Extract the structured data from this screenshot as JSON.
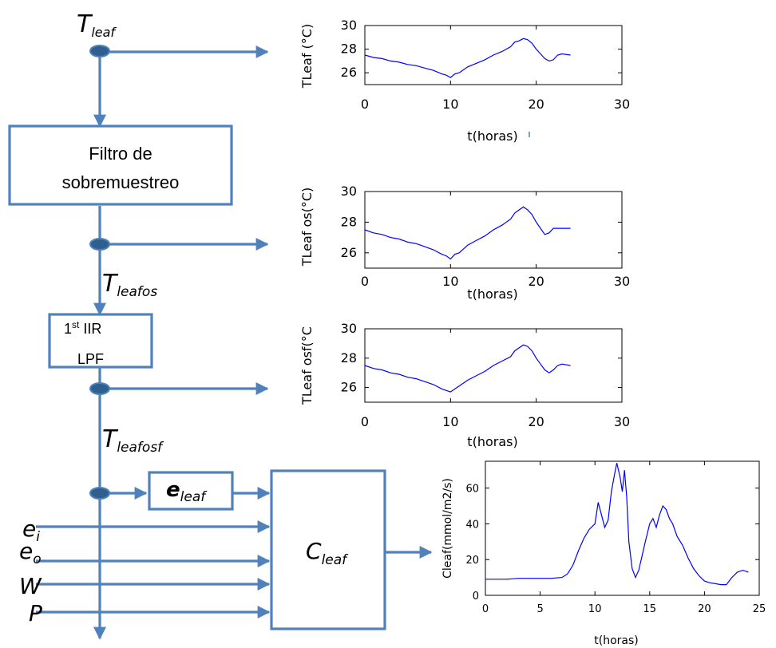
{
  "signals": {
    "tleaf": {
      "main": "T",
      "sub": "leaf"
    },
    "tleafos": {
      "main": "T",
      "sub": "leafos"
    },
    "tleafosf": {
      "main": "T",
      "sub": "leafosf"
    },
    "eleaf": {
      "main": "e",
      "sub": "leaf"
    },
    "cleaf": {
      "main": "C",
      "sub": "leaf"
    },
    "ei": {
      "main": "e",
      "sub": "i"
    },
    "eo": {
      "main": "e",
      "sub": "o"
    },
    "w": "W",
    "p": "P"
  },
  "blocks": {
    "filter_line1": "Filtro de",
    "filter_line2": "sobremuestreo",
    "iir_prefix": "1",
    "iir_sup": "st",
    "iir_line1_rest": " IIR",
    "iir_line2": "LPF"
  },
  "colors": {
    "arrow": "#4f81bd",
    "node_fill": "#2f5f8f",
    "curve": "#0000ff"
  },
  "chart_data": [
    {
      "type": "line",
      "title": "",
      "xlabel": "t(horas)",
      "ylabel": "TLeaf (°C)",
      "xlim": [
        0,
        30
      ],
      "ylim": [
        25,
        30
      ],
      "xticks": [
        "0",
        "10",
        "20",
        "30"
      ],
      "yticks": [
        "26",
        "28",
        "30"
      ],
      "series": [
        {
          "x": [
            0,
            1,
            2,
            3,
            4,
            5,
            6,
            7,
            8,
            9,
            9.5,
            10,
            10.5,
            11,
            12,
            13,
            14,
            15,
            16,
            17,
            17.5,
            18,
            18.5,
            19,
            19.5,
            20,
            20.5,
            21,
            21.5,
            22,
            22.5,
            23,
            24
          ],
          "y": [
            27.5,
            27.3,
            27.2,
            27.0,
            26.9,
            26.7,
            26.6,
            26.4,
            26.2,
            25.9,
            25.8,
            25.6,
            25.9,
            26.0,
            26.5,
            26.8,
            27.1,
            27.5,
            27.8,
            28.2,
            28.6,
            28.7,
            28.9,
            28.8,
            28.5,
            28.0,
            27.6,
            27.2,
            27.0,
            27.1,
            27.5,
            27.6,
            27.5
          ]
        }
      ]
    },
    {
      "type": "line",
      "title": "",
      "xlabel": "t(horas)",
      "ylabel": "TLeaf os(°C)",
      "xlim": [
        0,
        30
      ],
      "ylim": [
        25,
        30
      ],
      "xticks": [
        "0",
        "10",
        "20",
        "30"
      ],
      "yticks": [
        "26",
        "28",
        "30"
      ],
      "series": [
        {
          "x": [
            0,
            1,
            2,
            3,
            4,
            5,
            6,
            7,
            8,
            9,
            9.5,
            10,
            10.5,
            11,
            12,
            13,
            14,
            15,
            16,
            17,
            17.5,
            18,
            18.5,
            19,
            19.5,
            20,
            20.5,
            21,
            21.5,
            22,
            22.5,
            23,
            24
          ],
          "y": [
            27.5,
            27.3,
            27.2,
            27.0,
            26.9,
            26.7,
            26.6,
            26.4,
            26.2,
            25.9,
            25.8,
            25.6,
            25.9,
            26.0,
            26.5,
            26.8,
            27.1,
            27.5,
            27.8,
            28.2,
            28.6,
            28.8,
            29.0,
            28.8,
            28.5,
            28.0,
            27.6,
            27.2,
            27.3,
            27.6,
            27.6,
            27.6,
            27.6
          ]
        }
      ]
    },
    {
      "type": "line",
      "title": "",
      "xlabel": "t(horas)",
      "ylabel": "TLeaf osf(°C",
      "xlim": [
        0,
        30
      ],
      "ylim": [
        25,
        30
      ],
      "xticks": [
        "0",
        "10",
        "20",
        "30"
      ],
      "yticks": [
        "26",
        "28",
        "30"
      ],
      "series": [
        {
          "x": [
            0,
            1,
            2,
            3,
            4,
            5,
            6,
            7,
            8,
            9,
            9.5,
            10,
            10.5,
            11,
            12,
            13,
            14,
            15,
            16,
            17,
            17.5,
            18,
            18.5,
            19,
            19.5,
            20,
            20.5,
            21,
            21.5,
            22,
            22.5,
            23,
            24
          ],
          "y": [
            27.5,
            27.3,
            27.2,
            27.0,
            26.9,
            26.7,
            26.6,
            26.4,
            26.2,
            25.9,
            25.8,
            25.7,
            25.9,
            26.1,
            26.5,
            26.8,
            27.1,
            27.5,
            27.8,
            28.1,
            28.5,
            28.7,
            28.9,
            28.8,
            28.5,
            28.0,
            27.6,
            27.2,
            27.0,
            27.2,
            27.5,
            27.6,
            27.5
          ]
        }
      ]
    },
    {
      "type": "line",
      "title": "",
      "xlabel": "t(horas)",
      "ylabel": "Cleaf(mmol/m2/s)",
      "xlim": [
        0,
        25
      ],
      "ylim": [
        0,
        75
      ],
      "xticks": [
        "0",
        "5",
        "10",
        "15",
        "20",
        "25"
      ],
      "yticks": [
        "0",
        "20",
        "40",
        "60"
      ],
      "series": [
        {
          "x": [
            0,
            1,
            2,
            3,
            4,
            5,
            6,
            7,
            7.5,
            8,
            8.5,
            9,
            9.5,
            10,
            10.3,
            10.6,
            10.9,
            11.2,
            11.5,
            11.8,
            12.0,
            12.3,
            12.5,
            12.7,
            12.9,
            13.1,
            13.4,
            13.7,
            14,
            14.3,
            14.6,
            15,
            15.3,
            15.6,
            15.9,
            16.2,
            16.5,
            16.8,
            17.1,
            17.5,
            18,
            18.5,
            19,
            19.5,
            20,
            20.5,
            21,
            21.5,
            22,
            22.5,
            23,
            23.5,
            24
          ],
          "y": [
            9,
            9,
            9,
            9.5,
            9.5,
            9.5,
            9.5,
            10,
            12,
            17,
            25,
            32,
            37,
            40,
            52,
            45,
            38,
            42,
            58,
            68,
            74,
            66,
            58,
            70,
            55,
            30,
            15,
            10,
            14,
            22,
            30,
            40,
            43,
            38,
            45,
            50,
            48,
            43,
            40,
            33,
            28,
            21,
            15,
            11,
            8,
            7,
            6.5,
            6,
            6,
            10,
            13,
            14,
            13
          ]
        }
      ]
    }
  ]
}
